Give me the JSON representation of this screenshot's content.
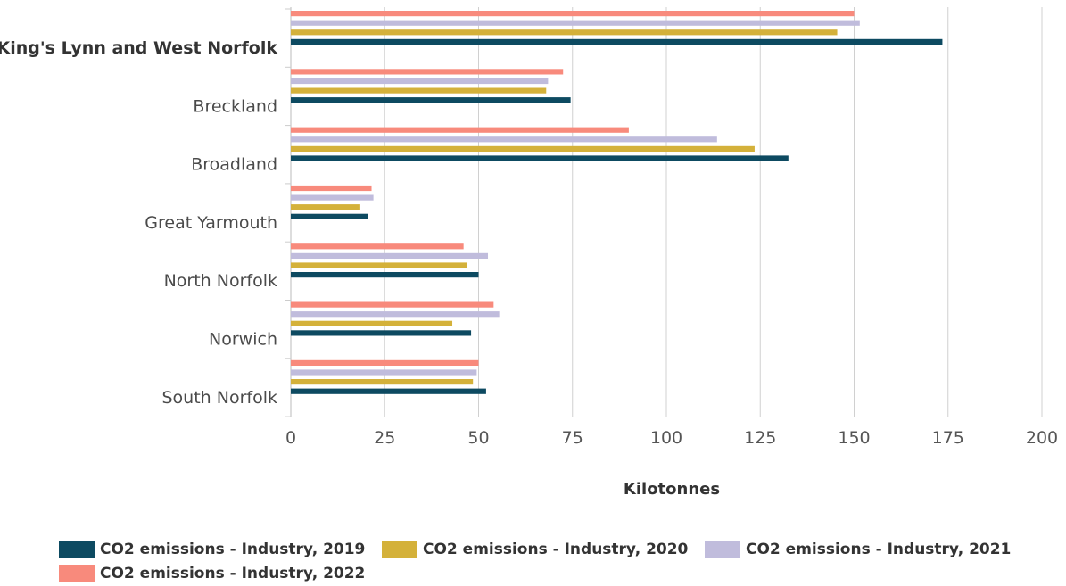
{
  "chart_data": {
    "type": "bar",
    "orientation": "horizontal",
    "categories": [
      "King's Lynn and West Norfolk",
      "Breckland",
      "Broadland",
      "Great Yarmouth",
      "North Norfolk",
      "Norwich",
      "South Norfolk"
    ],
    "highlighted_category": "King's Lynn and West Norfolk",
    "series": [
      {
        "name": "CO2 emissions - Industry, 2022",
        "color": "#f88a7c",
        "values": [
          150,
          72.5,
          90,
          21.5,
          46,
          54,
          50
        ]
      },
      {
        "name": "CO2 emissions - Industry, 2021",
        "color": "#c0bcdc",
        "values": [
          151.5,
          68.5,
          113.5,
          22,
          52.5,
          55.5,
          49.5
        ]
      },
      {
        "name": "CO2 emissions - Industry, 2020",
        "color": "#d4b13a",
        "values": [
          145.5,
          68,
          123.5,
          18.5,
          47,
          43,
          48.5
        ]
      },
      {
        "name": "CO2 emissions - Industry, 2019",
        "color": "#0d4a61",
        "values": [
          173.5,
          74.5,
          132.5,
          20.5,
          50,
          48,
          52
        ]
      }
    ],
    "xlabel": "Kilotonnes",
    "xlim": [
      0,
      200
    ],
    "xticks": [
      "0",
      "25",
      "50",
      "75",
      "100",
      "125",
      "150",
      "175",
      "200"
    ],
    "grid": "vertical",
    "legend_position": "bottom"
  },
  "legend": {
    "items": [
      {
        "label": "CO2 emissions - Industry, 2019",
        "color": "#0d4a61"
      },
      {
        "label": "CO2 emissions - Industry, 2020",
        "color": "#d4b13a"
      },
      {
        "label": "CO2 emissions - Industry, 2021",
        "color": "#c0bcdc"
      },
      {
        "label": "CO2 emissions - Industry, 2022",
        "color": "#f88a7c"
      }
    ]
  }
}
